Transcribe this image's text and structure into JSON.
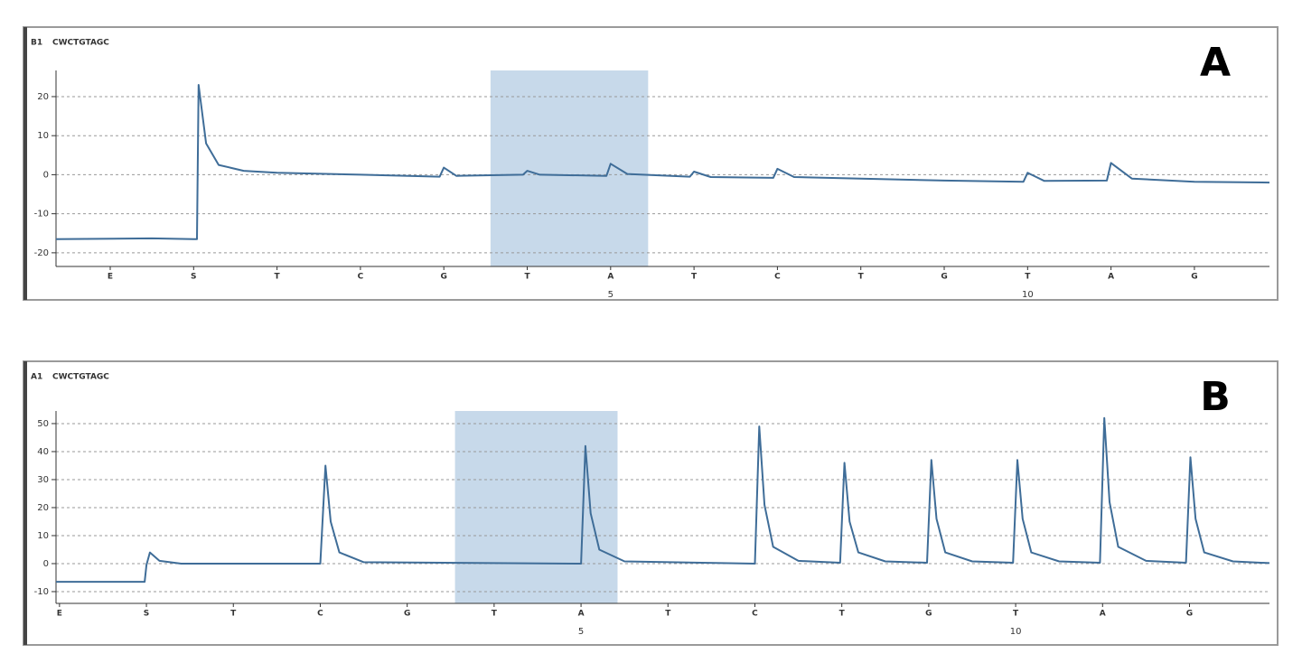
{
  "chart_data": [
    {
      "type": "line",
      "title": "A",
      "well": "B1",
      "sequence_label": "CWCTGTAGC",
      "color": "#3f6d98",
      "highlight_color": "#b9cfe5",
      "grid": true,
      "xlim": [
        -0.65,
        13.9
      ],
      "ylim": [
        -23.5,
        26.7
      ],
      "yticks": [
        20,
        10,
        0,
        -10,
        -20
      ],
      "xticks": [
        {
          "value": 0,
          "label": "E"
        },
        {
          "value": 1,
          "label": "S"
        },
        {
          "value": 2,
          "label": "T"
        },
        {
          "value": 3,
          "label": "C"
        },
        {
          "value": 4,
          "label": "G"
        },
        {
          "value": 5,
          "label": "T"
        },
        {
          "value": 6,
          "label": "A"
        },
        {
          "value": 7,
          "label": "T"
        },
        {
          "value": 8,
          "label": "C"
        },
        {
          "value": 9,
          "label": "T"
        },
        {
          "value": 10,
          "label": "G"
        },
        {
          "value": 11,
          "label": "T"
        },
        {
          "value": 12,
          "label": "A"
        },
        {
          "value": 13,
          "label": "G"
        }
      ],
      "position_numbers": [
        {
          "value": 6,
          "label": "5"
        },
        {
          "value": 11,
          "label": "10"
        }
      ],
      "highlight": [
        4.56,
        6.45
      ],
      "x": [
        -0.65,
        0.5,
        1.0,
        1.04,
        1.06,
        1.15,
        1.3,
        1.6,
        2,
        3,
        3.95,
        4.0,
        4.15,
        4.95,
        5.0,
        5.15,
        5.95,
        6.0,
        6.2,
        6.95,
        7.0,
        7.2,
        7.95,
        8.0,
        8.2,
        9,
        10,
        10.95,
        11.0,
        11.2,
        11.95,
        12.0,
        12.25,
        13,
        13.9
      ],
      "values": [
        -16.5,
        -16.3,
        -16.5,
        -16.5,
        23,
        8,
        2.5,
        1,
        0.5,
        0,
        -0.5,
        1.8,
        -0.3,
        0,
        1,
        0,
        -0.3,
        2.8,
        0.2,
        -0.5,
        0.8,
        -0.6,
        -0.8,
        1.5,
        -0.6,
        -1,
        -1.5,
        -1.8,
        0.5,
        -1.6,
        -1.5,
        3,
        -1,
        -1.8,
        -2
      ]
    },
    {
      "type": "line",
      "title": "B",
      "well": "A1",
      "sequence_label": "CWCTGTAGC",
      "color": "#3f6d98",
      "highlight_color": "#b9cfe5",
      "grid": true,
      "xlim": [
        -0.04,
        13.92
      ],
      "ylim": [
        -14.2,
        54.5
      ],
      "yticks": [
        50,
        40,
        30,
        20,
        10,
        0,
        -10
      ],
      "xticks": [
        {
          "value": 0,
          "label": "E"
        },
        {
          "value": 1,
          "label": "S"
        },
        {
          "value": 2,
          "label": "T"
        },
        {
          "value": 3,
          "label": "C"
        },
        {
          "value": 4,
          "label": "G"
        },
        {
          "value": 5,
          "label": "T"
        },
        {
          "value": 6,
          "label": "A"
        },
        {
          "value": 7,
          "label": "T"
        },
        {
          "value": 8,
          "label": "C"
        },
        {
          "value": 9,
          "label": "T"
        },
        {
          "value": 10,
          "label": "G"
        },
        {
          "value": 11,
          "label": "T"
        },
        {
          "value": 12,
          "label": "A"
        },
        {
          "value": 13,
          "label": "G"
        }
      ],
      "position_numbers": [
        {
          "value": 6,
          "label": "5"
        },
        {
          "value": 11,
          "label": "10"
        }
      ],
      "highlight": [
        4.55,
        6.42
      ],
      "x": [
        -0.04,
        0.98,
        1.0,
        1.04,
        1.15,
        1.4,
        3.0,
        3.06,
        3.12,
        3.22,
        3.5,
        6.0,
        6.05,
        6.11,
        6.21,
        6.5,
        8.0,
        8.05,
        8.11,
        8.21,
        8.5,
        8.98,
        9.03,
        9.09,
        9.19,
        9.5,
        9.98,
        10.03,
        10.09,
        10.19,
        10.5,
        10.97,
        11.02,
        11.08,
        11.18,
        11.5,
        11.97,
        12.02,
        12.08,
        12.18,
        12.5,
        12.96,
        13.01,
        13.07,
        13.17,
        13.5,
        13.92
      ],
      "values": [
        -6.5,
        -6.5,
        -0.5,
        4,
        1,
        0,
        0,
        35,
        15,
        4,
        0.5,
        0,
        42,
        18,
        5,
        0.8,
        0,
        49,
        21,
        6,
        1,
        0.3,
        36,
        15,
        4,
        0.8,
        0.3,
        37,
        16,
        4,
        0.8,
        0.3,
        37,
        16,
        4,
        0.8,
        0.3,
        52,
        22,
        6,
        1,
        0.3,
        38,
        16,
        4,
        0.8,
        0.2
      ]
    }
  ]
}
